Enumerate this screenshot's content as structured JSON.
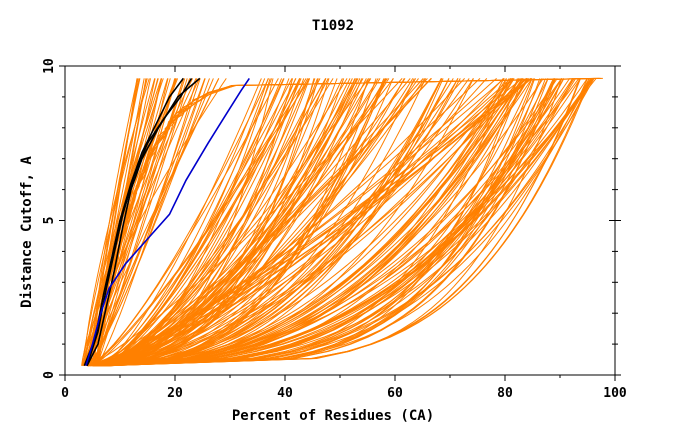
{
  "chart_data": {
    "type": "line",
    "title": "T1092",
    "xlabel": "Percent of Residues (CA)",
    "ylabel": "Distance Cutoff, A",
    "xlim": [
      0,
      100
    ],
    "ylim": [
      0,
      10
    ],
    "x_ticks": [
      "0",
      "20",
      "40",
      "60",
      "80",
      "100"
    ],
    "y_ticks": [
      "0",
      "5",
      "10"
    ],
    "y_cap": 9.6,
    "grid": false,
    "legend": "none",
    "colors": {
      "background": "#ffffff",
      "axes": "#000000",
      "models": "#ff8000",
      "highlight_blue": "#0000cc",
      "highlight_black": "#000000"
    },
    "series": [
      {
        "color": "#000000",
        "points": [
          [
            4,
            0.3
          ],
          [
            6,
            1.0
          ],
          [
            7.5,
            2.2
          ],
          [
            9,
            3.4
          ],
          [
            10.5,
            4.8
          ],
          [
            12,
            6.0
          ],
          [
            14,
            7.0
          ],
          [
            17,
            8.0
          ],
          [
            20.5,
            9.0
          ],
          [
            24.5,
            9.6
          ]
        ]
      },
      {
        "color": "#000000",
        "points": [
          [
            3.5,
            0.3
          ],
          [
            5.5,
            1.2
          ],
          [
            7,
            2.6
          ],
          [
            8.5,
            3.8
          ],
          [
            10,
            5.0
          ],
          [
            12,
            6.2
          ],
          [
            14,
            7.2
          ],
          [
            16.5,
            8.1
          ],
          [
            19,
            9.0
          ],
          [
            21.5,
            9.6
          ]
        ]
      },
      {
        "color": "#000000",
        "points": [
          [
            4,
            0.3
          ],
          [
            6,
            1.4
          ],
          [
            7.5,
            2.8
          ],
          [
            9,
            4.0
          ],
          [
            10.5,
            5.2
          ],
          [
            12.5,
            6.4
          ],
          [
            15,
            7.5
          ],
          [
            18,
            8.3
          ],
          [
            21,
            9.0
          ],
          [
            23,
            9.6
          ]
        ]
      },
      {
        "color": "#0000cc",
        "points": [
          [
            3.8,
            0.3
          ],
          [
            5,
            1.0
          ],
          [
            6.5,
            2.0
          ],
          [
            8,
            2.8
          ],
          [
            11,
            3.6
          ],
          [
            15,
            4.4
          ],
          [
            19,
            5.2
          ],
          [
            22,
            6.3
          ],
          [
            26,
            7.5
          ],
          [
            29.5,
            8.5
          ],
          [
            32,
            9.2
          ],
          [
            33.5,
            9.6
          ]
        ]
      }
    ]
  }
}
